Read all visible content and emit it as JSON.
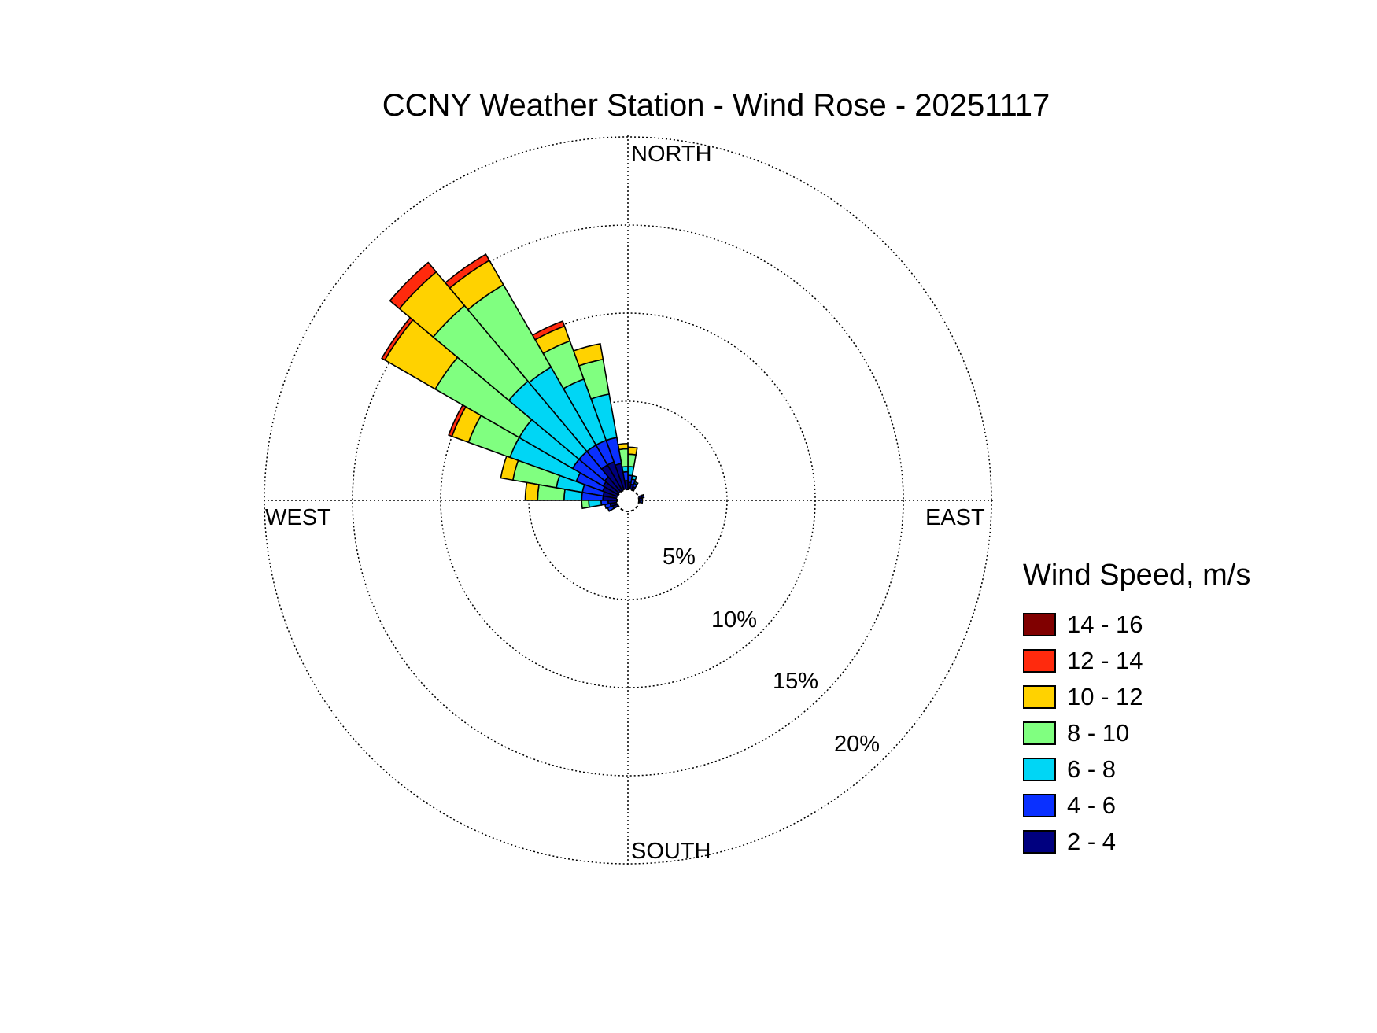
{
  "chart_data": {
    "type": "wind-rose",
    "title": "CCNY Weather Station - Wind Rose - 20251117",
    "directions": [
      "NORTH",
      "EAST",
      "SOUTH",
      "WEST"
    ],
    "radial_ticks": [
      "5%",
      "10%",
      "15%",
      "20%"
    ],
    "radial_max": 20,
    "grid": true,
    "legend": {
      "title": "Wind Speed, m/s",
      "placement": "right",
      "bins": [
        {
          "label": "14 - 16",
          "color": "#800000"
        },
        {
          "label": "12 - 14",
          "color": "#ff2a0d"
        },
        {
          "label": "10 - 12",
          "color": "#ffd200"
        },
        {
          "label": "8 - 10",
          "color": "#80ff80"
        },
        {
          "label": "6 - 8",
          "color": "#00d6f5"
        },
        {
          "label": "4 - 6",
          "color": "#0a30ff"
        },
        {
          "label": "2 - 4",
          "color": "#00007f"
        }
      ]
    },
    "bin_order_inner_to_outer": [
      "2 - 4",
      "4 - 6",
      "6 - 8",
      "8 - 10",
      "10 - 12",
      "12 - 14",
      "14 - 16"
    ],
    "sectors": [
      {
        "direction_deg": 5,
        "cumulative_pct": [
          0.4,
          0.8,
          1.3,
          2.0,
          2.4
        ]
      },
      {
        "direction_deg": 355,
        "cumulative_pct": [
          0.5,
          1.0,
          1.3,
          2.3,
          2.6
        ]
      },
      {
        "direction_deg": 345,
        "cumulative_pct": [
          1.5,
          3.0,
          5.5,
          7.5,
          8.4
        ]
      },
      {
        "direction_deg": 335,
        "cumulative_pct": [
          1.7,
          3.0,
          6.7,
          9.0,
          9.9,
          10.2
        ]
      },
      {
        "direction_deg": 325,
        "cumulative_pct": [
          1.7,
          3.0,
          8.1,
          13.5,
          15.1,
          15.5
        ]
      },
      {
        "direction_deg": 315,
        "cumulative_pct": [
          1.1,
          3.0,
          8.2,
          13.8,
          16.3,
          17.0
        ]
      },
      {
        "direction_deg": 305,
        "cumulative_pct": [
          1.0,
          3.0,
          6.5,
          12.0,
          15.3,
          15.5
        ]
      },
      {
        "direction_deg": 295,
        "cumulative_pct": [
          0.9,
          2.5,
          6.5,
          9.0,
          10.0,
          10.2
        ]
      },
      {
        "direction_deg": 285,
        "cumulative_pct": [
          0.8,
          2.0,
          3.5,
          6.0,
          6.7
        ]
      },
      {
        "direction_deg": 275,
        "cumulative_pct": [
          0.8,
          2.0,
          3.0,
          4.5,
          5.2
        ]
      },
      {
        "direction_deg": 265,
        "cumulative_pct": [
          0.5,
          0.9,
          1.6,
          2.0
        ]
      },
      {
        "direction_deg": 15,
        "cumulative_pct": [
          0.3,
          0.6,
          0.8
        ]
      },
      {
        "direction_deg": 25,
        "cumulative_pct": [
          0.2,
          0.4,
          0.5
        ]
      },
      {
        "direction_deg": 75,
        "cumulative_pct": [
          0.2,
          0.3
        ]
      },
      {
        "direction_deg": 85,
        "cumulative_pct": [
          0.2
        ]
      },
      {
        "direction_deg": 95,
        "cumulative_pct": [
          0.1,
          0.2
        ]
      },
      {
        "direction_deg": 255,
        "cumulative_pct": [
          0.4,
          0.7
        ]
      },
      {
        "direction_deg": 245,
        "cumulative_pct": [
          0.3,
          0.6
        ]
      }
    ]
  }
}
